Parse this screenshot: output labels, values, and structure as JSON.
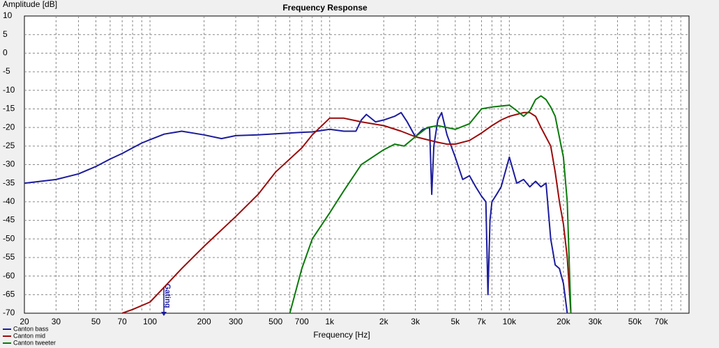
{
  "chart_data": {
    "type": "line",
    "title": "Frequency Response",
    "y_label": "Amplitude [dB]",
    "x_label": "Frequency [Hz]",
    "annotation": "Gating",
    "xscale": "log",
    "grid": true,
    "legend": "bottom-left",
    "xlim": [
      20,
      100000
    ],
    "ylim": [
      -70,
      10
    ],
    "yticks": [
      10,
      5,
      0,
      -5,
      -10,
      -15,
      -20,
      -25,
      -30,
      -35,
      -40,
      -45,
      -50,
      -55,
      -60,
      -65,
      -70
    ],
    "xticks": [
      20,
      30,
      50,
      70,
      100,
      200,
      300,
      500,
      700,
      {
        "value": 1000,
        "label": "1k"
      },
      {
        "value": 2000,
        "label": "2k"
      },
      {
        "value": 3000,
        "label": "3k"
      },
      {
        "value": 5000,
        "label": "5k"
      },
      {
        "value": 7000,
        "label": "7k"
      },
      {
        "value": 10000,
        "label": "10k"
      },
      {
        "value": 20000,
        "label": "20k"
      },
      {
        "value": 30000,
        "label": "30k"
      },
      {
        "value": 50000,
        "label": "50k"
      },
      {
        "value": 70000,
        "label": "70k"
      }
    ],
    "xminorticks": [
      40,
      60,
      80,
      90,
      400,
      600,
      800,
      900,
      4000,
      6000,
      8000,
      9000,
      40000,
      60000,
      80000,
      90000
    ],
    "series": [
      {
        "name": "Canton bass",
        "color": "#1c1c9c",
        "x": [
          20,
          30,
          40,
          50,
          60,
          70,
          80,
          90,
          100,
          120,
          150,
          200,
          250,
          300,
          400,
          500,
          600,
          700,
          800,
          1000,
          1200,
          1400,
          1500,
          1600,
          1800,
          2000,
          2300,
          2500,
          2700,
          3000,
          3300,
          3600,
          3700,
          3800,
          4000,
          4200,
          4500,
          5000,
          5500,
          6000,
          6500,
          7000,
          7400,
          7600,
          7800,
          8000,
          8500,
          9000,
          10000,
          11000,
          12000,
          13000,
          14000,
          15000,
          16000,
          17000,
          18000,
          19000,
          20000,
          21000
        ],
        "values": [
          -35,
          -34,
          -32.5,
          -30.5,
          -28.5,
          -27,
          -25.5,
          -24.2,
          -23.3,
          -21.8,
          -21,
          -22,
          -23,
          -22.2,
          -22,
          -21.7,
          -21.5,
          -21.3,
          -21.2,
          -20.5,
          -21,
          -21,
          -18,
          -16.5,
          -18.5,
          -18,
          -17,
          -16,
          -18.5,
          -22.5,
          -20.5,
          -20,
          -38,
          -25,
          -18,
          -16,
          -22,
          -28,
          -34,
          -33,
          -36,
          -38.5,
          -40,
          -65,
          -45,
          -40,
          -38,
          -36,
          -28,
          -35,
          -34,
          -36,
          -34.5,
          -36,
          -35,
          -50,
          -57,
          -58,
          -62,
          -70
        ]
      },
      {
        "name": "Canton mid",
        "color": "#9b0a0a",
        "x": [
          70,
          80,
          100,
          120,
          150,
          200,
          300,
          400,
          500,
          700,
          800,
          1000,
          1200,
          1500,
          2000,
          2500,
          3000,
          4000,
          4500,
          5000,
          6000,
          7000,
          8000,
          9000,
          10000,
          12000,
          13000,
          14000,
          15000,
          17000,
          18000,
          19000,
          20000,
          21000,
          22000
        ],
        "values": [
          -70,
          -69,
          -67,
          -63,
          -58,
          -52,
          -44,
          -38,
          -32,
          -25.5,
          -22,
          -17.5,
          -17.5,
          -18.5,
          -19.5,
          -21,
          -22.5,
          -24,
          -24.5,
          -24.5,
          -23.5,
          -21.5,
          -19.5,
          -18,
          -17,
          -16,
          -16,
          -17,
          -20,
          -25,
          -32,
          -40,
          -46,
          -55,
          -70
        ]
      },
      {
        "name": "Canton tweeter",
        "color": "#0a7a0a",
        "x": [
          600,
          700,
          800,
          1000,
          1200,
          1500,
          2000,
          2300,
          2600,
          3000,
          3500,
          4000,
          5000,
          6000,
          7000,
          8000,
          10000,
          11000,
          12000,
          13000,
          14000,
          15000,
          16000,
          17000,
          18000,
          20000,
          21000,
          22000
        ],
        "values": [
          -70,
          -58,
          -50,
          -43,
          -37,
          -30,
          -26,
          -24.5,
          -25,
          -22.5,
          -20,
          -19.5,
          -20.5,
          -19,
          -15,
          -14.5,
          -14,
          -15.5,
          -17,
          -15.5,
          -12.5,
          -11.5,
          -12.5,
          -14.5,
          -17,
          -28,
          -40,
          -70
        ]
      }
    ]
  }
}
